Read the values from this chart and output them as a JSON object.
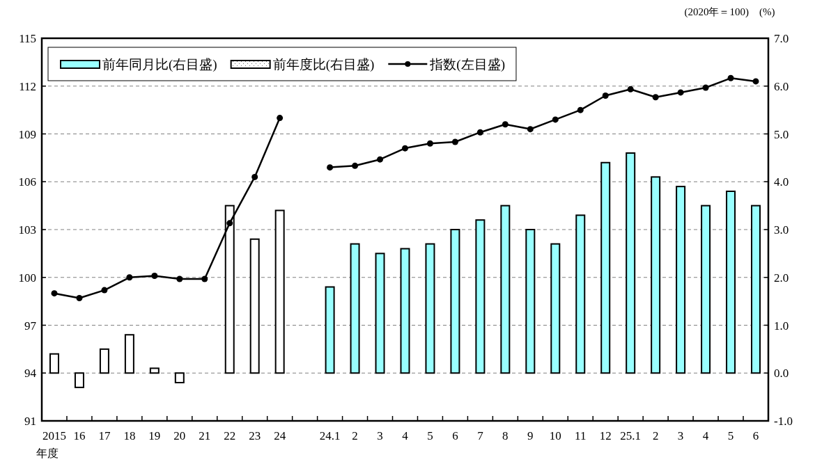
{
  "chart_data": {
    "type": "bar",
    "xlabel": "年度",
    "y2label": "(%)",
    "annotations": [
      "(2020年＝100)"
    ],
    "categories": [
      "2015",
      "16",
      "17",
      "18",
      "19",
      "20",
      "21",
      "22",
      "23",
      "24",
      null,
      "24.1",
      "2",
      "3",
      "4",
      "5",
      "6",
      "7",
      "8",
      "9",
      "10",
      "11",
      "12",
      "25.1",
      "2",
      "3",
      "4",
      "5",
      "6"
    ],
    "series": [
      {
        "name": "前年同月比(右目盛)",
        "axis": "y2",
        "color": "#99ffff",
        "values": [
          null,
          null,
          null,
          null,
          null,
          null,
          null,
          null,
          null,
          null,
          null,
          1.8,
          2.7,
          2.5,
          2.6,
          2.7,
          3.0,
          3.2,
          3.5,
          3.0,
          2.7,
          3.3,
          4.4,
          4.6,
          4.1,
          3.9,
          3.5,
          3.8,
          3.5
        ]
      },
      {
        "name": "前年度比(右目盛)",
        "axis": "y2",
        "color": "#ffffff",
        "values": [
          0.4,
          -0.3,
          0.5,
          0.8,
          0.1,
          -0.2,
          null,
          3.5,
          2.8,
          3.4,
          null,
          null,
          null,
          null,
          null,
          null,
          null,
          null,
          null,
          null,
          null,
          null,
          null,
          null,
          null,
          null,
          null,
          null,
          null
        ]
      },
      {
        "name": "指数(左目盛)",
        "type": "line",
        "color": "#000000",
        "marker": "circle",
        "values": [
          99.0,
          98.7,
          99.2,
          100.0,
          100.1,
          99.9,
          99.9,
          103.4,
          106.3,
          110.0,
          null,
          106.9,
          107.0,
          107.4,
          108.1,
          108.4,
          108.5,
          109.1,
          109.6,
          109.3,
          109.9,
          110.5,
          111.4,
          111.8,
          111.3,
          111.6,
          111.9,
          112.5,
          112.3
        ]
      }
    ],
    "ylim": [
      91,
      115
    ],
    "yticks": [
      91,
      94,
      97,
      100,
      103,
      106,
      109,
      112,
      115
    ],
    "y2lim": [
      -1,
      7
    ],
    "y2ticks": [
      {
        "value": -1,
        "label": "-1.0"
      },
      {
        "value": 0,
        "label": "0.0"
      },
      {
        "value": 1,
        "label": "1.0"
      },
      {
        "value": 2,
        "label": "2.0"
      },
      {
        "value": 3,
        "label": "3.0"
      },
      {
        "value": 4,
        "label": "4.0"
      },
      {
        "value": 5,
        "label": "5.0"
      },
      {
        "value": 6,
        "label": "6.0"
      },
      {
        "value": 7,
        "label": "7.0"
      }
    ],
    "grid": "y",
    "legend": "top left"
  }
}
